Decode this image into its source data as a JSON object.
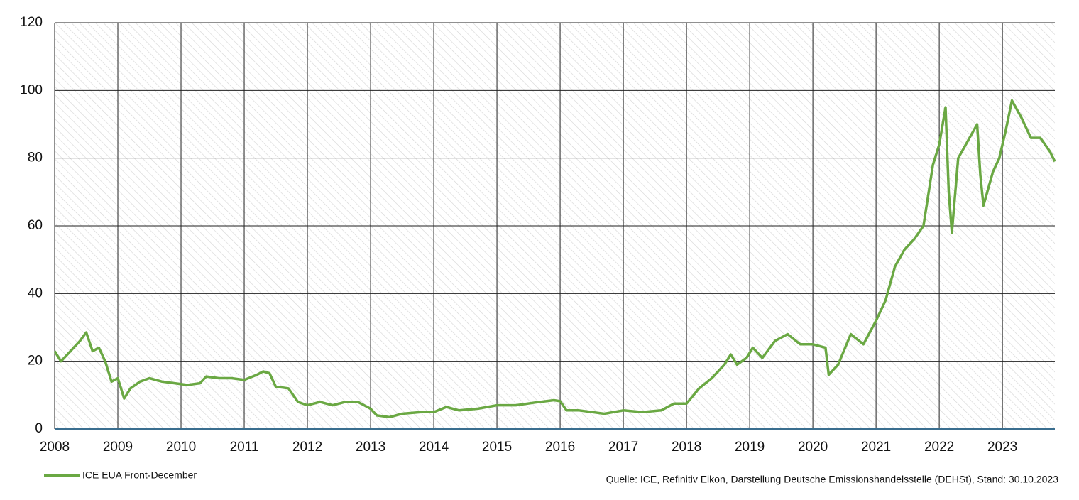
{
  "chart_data": {
    "type": "line",
    "source": "Quelle: ICE, Refinitiv Eikon, Darstellung Deutsche Emissionshandelsstelle (DEHSt), Stand: 30.10.2023",
    "xlim": [
      2008,
      2023.83
    ],
    "xticks": [
      2008,
      2009,
      2010,
      2011,
      2012,
      2013,
      2014,
      2015,
      2016,
      2017,
      2018,
      2019,
      2020,
      2021,
      2022,
      2023
    ],
    "ylim": [
      0,
      120
    ],
    "yticks": [
      0,
      20,
      40,
      60,
      80,
      100,
      120
    ],
    "grid": true,
    "legend": "bottom-left",
    "x": [
      2008.0,
      2008.1,
      2008.25,
      2008.4,
      2008.5,
      2008.6,
      2008.7,
      2008.8,
      2008.9,
      2009.0,
      2009.1,
      2009.2,
      2009.35,
      2009.5,
      2009.7,
      2009.9,
      2010.1,
      2010.3,
      2010.4,
      2010.6,
      2010.8,
      2011.0,
      2011.2,
      2011.3,
      2011.4,
      2011.5,
      2011.7,
      2011.85,
      2012.0,
      2012.2,
      2012.4,
      2012.6,
      2012.8,
      2013.0,
      2013.1,
      2013.3,
      2013.5,
      2013.8,
      2014.0,
      2014.2,
      2014.4,
      2014.7,
      2015.0,
      2015.3,
      2015.6,
      2015.9,
      2016.0,
      2016.1,
      2016.3,
      2016.5,
      2016.7,
      2017.0,
      2017.3,
      2017.6,
      2017.8,
      2018.0,
      2018.2,
      2018.4,
      2018.6,
      2018.7,
      2018.8,
      2018.95,
      2019.05,
      2019.2,
      2019.4,
      2019.6,
      2019.8,
      2020.0,
      2020.2,
      2020.25,
      2020.4,
      2020.6,
      2020.8,
      2021.0,
      2021.15,
      2021.3,
      2021.45,
      2021.6,
      2021.75,
      2021.9,
      2022.0,
      2022.1,
      2022.15,
      2022.2,
      2022.3,
      2022.45,
      2022.6,
      2022.65,
      2022.7,
      2022.85,
      2022.95,
      2023.05,
      2023.15,
      2023.3,
      2023.45,
      2023.6,
      2023.75,
      2023.83
    ],
    "series": [
      {
        "name": "ICE EUA Front-December",
        "color": "#6aa843",
        "values": [
          23,
          20,
          23,
          26,
          28.5,
          23,
          24,
          20,
          14,
          15,
          9,
          12,
          14,
          15,
          14,
          13.5,
          13,
          13.5,
          15.5,
          15,
          15,
          14.5,
          16,
          17,
          16.5,
          12.5,
          12,
          8,
          7,
          8,
          7,
          8,
          8,
          6,
          4,
          3.5,
          4.5,
          5,
          5,
          6.5,
          5.5,
          6,
          7,
          7,
          7.8,
          8.5,
          8.2,
          5.5,
          5.5,
          5,
          4.5,
          5.5,
          5,
          5.5,
          7.5,
          7.5,
          12,
          15,
          19,
          22,
          19,
          21,
          24,
          21,
          26,
          28,
          25,
          25,
          24,
          16,
          19,
          28,
          25,
          32,
          38,
          48,
          53,
          56,
          60,
          78,
          84,
          95,
          70,
          58,
          80,
          85,
          90,
          75,
          66,
          76,
          80,
          88,
          97,
          92,
          86,
          86,
          82,
          79
        ]
      }
    ]
  }
}
